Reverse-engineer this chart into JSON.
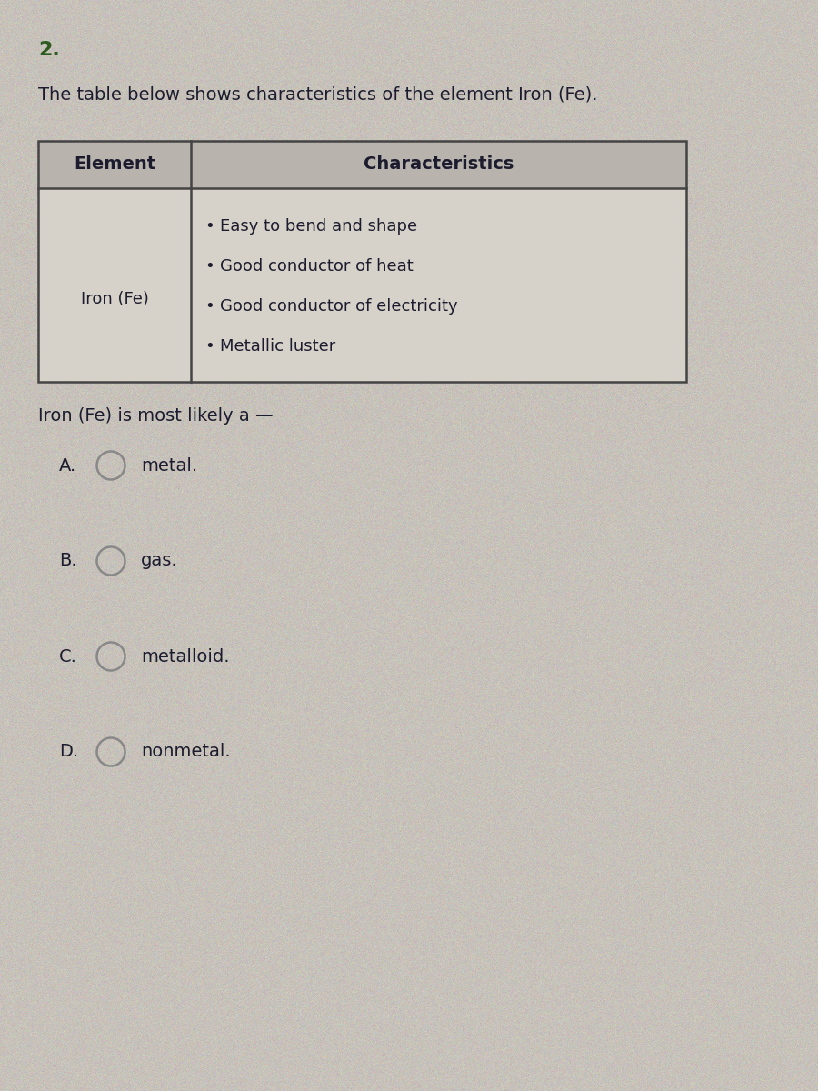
{
  "question_number": "2.",
  "question_number_color": "#2d5a1e",
  "intro_text": "The table below shows characteristics of the element Iron (Fe).",
  "table_header_col1": "Element",
  "table_header_col2": "Characteristics",
  "table_element": "Iron (Fe)",
  "table_characteristics": [
    "Easy to bend and shape",
    "Good conductor of heat",
    "Good conductor of electricity",
    "Metallic luster"
  ],
  "question_text": "Iron (Fe) is most likely a —",
  "choices": [
    {
      "label": "A.",
      "text": "metal."
    },
    {
      "label": "B.",
      "text": "gas."
    },
    {
      "label": "C.",
      "text": "metalloid."
    },
    {
      "label": "D.",
      "text": "nonmetal."
    }
  ],
  "bg_color_base": [
    0.78,
    0.76,
    0.73
  ],
  "table_body_color": [
    0.84,
    0.82,
    0.79
  ],
  "header_bg_color": [
    0.72,
    0.7,
    0.68
  ],
  "text_color": "#1c1c2e",
  "table_border_color": "#444444",
  "circle_color": "#888888",
  "font_size_intro": 14,
  "font_size_table_header": 14,
  "font_size_table_body": 13,
  "font_size_question": 14,
  "font_size_choices": 14,
  "font_size_number": 16
}
